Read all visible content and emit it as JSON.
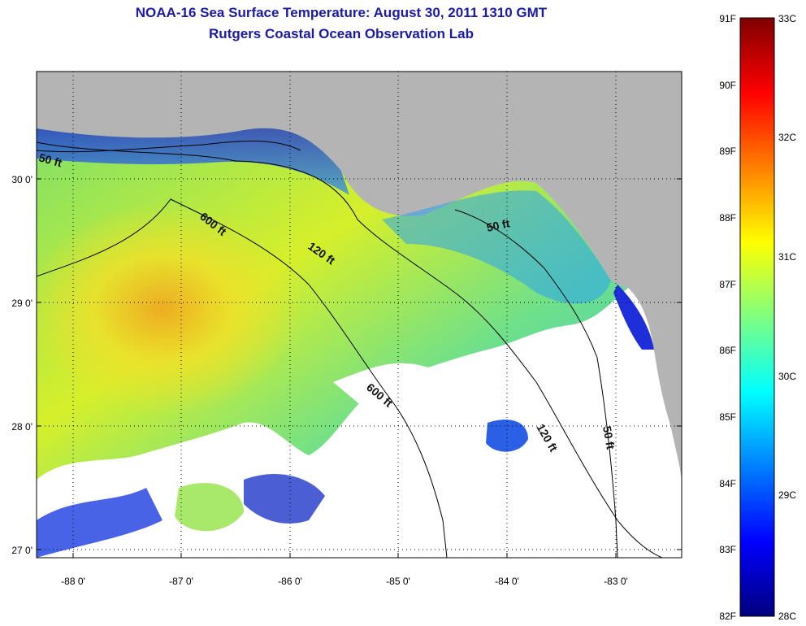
{
  "title": {
    "line1": "NOAA-16 Sea Surface Temperature:  August 30, 2011 1310 GMT",
    "line2": "Rutgers Coastal Ocean Observation Lab"
  },
  "map": {
    "lon_ticks": [
      "-88 0'",
      "-87 0'",
      "-86 0'",
      "-85 0'",
      "-84 0'",
      "-83 0'"
    ],
    "lat_ticks": [
      "30 0'",
      "29 0'",
      "28 0'",
      "27 0'"
    ],
    "contours": [
      "50 ft",
      "600 ft",
      "120 ft",
      "50 ft",
      "600 ft",
      "120 ft",
      "50 ft"
    ],
    "colors": {
      "land": "#b4b4b4",
      "cloud": "#ffffff"
    }
  },
  "colorbar": {
    "f_labels": [
      "91F",
      "90F",
      "89F",
      "88F",
      "87F",
      "86F",
      "85F",
      "84F",
      "83F",
      "82F"
    ],
    "c_labels": [
      "33C",
      "32C",
      "31C",
      "30C",
      "29C",
      "28C"
    ],
    "stops": [
      "#00007f",
      "#0000ff",
      "#007fff",
      "#00ffff",
      "#7fff7f",
      "#ffff00",
      "#ff7f00",
      "#ff0000",
      "#7f0000"
    ]
  }
}
